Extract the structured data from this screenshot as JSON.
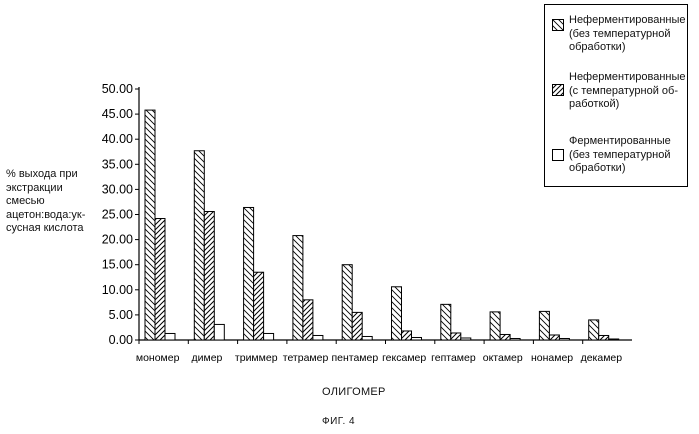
{
  "chart_data": {
    "type": "bar",
    "ylabel": "% выхода при\nэкстракции\nсмесью\nацетон:вода:ук-\nсусная кислота",
    "xlabel": "ОЛИГОМЕР",
    "categories": [
      "мономер",
      "димер",
      "триммер",
      "тетрамер",
      "пентамер",
      "гексамер",
      "гептамер",
      "октамер",
      "нонамер",
      "декамер"
    ],
    "yticks": [
      "0.00",
      "5.00",
      "10.00",
      "15.00",
      "20.00",
      "25.00",
      "30.00",
      "35.00",
      "40.00",
      "45.00",
      "50.00"
    ],
    "ylim": [
      0,
      50
    ],
    "series": [
      {
        "name": "Неферментированные\n(без температурной\nобработки)",
        "pattern": "back-hatch",
        "values": [
          45.8,
          37.7,
          26.4,
          20.8,
          15.0,
          10.6,
          7.1,
          5.6,
          5.7,
          4.0
        ]
      },
      {
        "name": "Неферментированные\n(с температурной об-\nработкой)",
        "pattern": "forward-hatch",
        "values": [
          24.2,
          25.6,
          13.5,
          8.0,
          5.5,
          1.8,
          1.4,
          1.1,
          1.0,
          0.9
        ]
      },
      {
        "name": "Ферментированные\n(без температурной\nобработки)",
        "pattern": "none",
        "values": [
          1.3,
          3.1,
          1.3,
          0.9,
          0.7,
          0.5,
          0.4,
          0.3,
          0.3,
          0.2
        ]
      }
    ],
    "grid": false,
    "legend": "top-right",
    "colors": {
      "stroke": "#000000",
      "fill": "#ffffff"
    }
  },
  "figure_caption": "ФИГ. 4"
}
